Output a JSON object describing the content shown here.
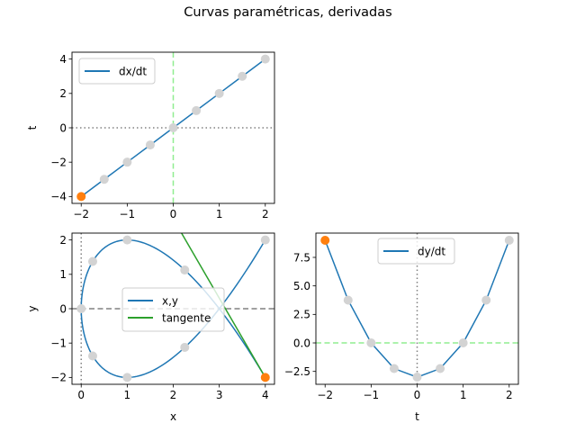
{
  "figure": {
    "title": "Curvas paramétricas, derivadas"
  },
  "chart_data": [
    {
      "id": "dxdt",
      "type": "line",
      "title": "",
      "xlabel": "",
      "ylabel": "t",
      "xlim": [
        -2.2,
        2.2
      ],
      "ylim": [
        -4.4,
        4.4
      ],
      "xticks": [
        -2,
        -1,
        0,
        1,
        2
      ],
      "xticklabels": [
        "−2",
        "−1",
        "0",
        "1",
        "2"
      ],
      "yticks": [
        -4,
        -2,
        0,
        2,
        4
      ],
      "yticklabels": [
        "−4",
        "−2",
        "0",
        "2",
        "4"
      ],
      "legend": {
        "position": "upper left",
        "entries": [
          {
            "label": "dx/dt",
            "color": "#1f77b4"
          }
        ]
      },
      "series": [
        {
          "name": "dx/dt",
          "color": "#1f77b4",
          "x": [
            -2,
            -1.5,
            -1,
            -0.5,
            0,
            0.5,
            1,
            1.5,
            2
          ],
          "y": [
            -4,
            -3,
            -2,
            -1,
            0,
            1,
            2,
            3,
            4
          ]
        }
      ],
      "markers": {
        "gray": {
          "color": "#d3d3d3",
          "x": [
            -1.5,
            -1,
            -0.5,
            0,
            0.5,
            1,
            1.5,
            2
          ],
          "y": [
            -3,
            -2,
            -1,
            0,
            1,
            2,
            3,
            4
          ]
        },
        "highlight": {
          "color": "#ff7f0e",
          "x": -2,
          "y": -4
        }
      },
      "reference_lines": [
        {
          "orientation": "horizontal",
          "value": 0,
          "style": "dotted",
          "color": "#808080"
        },
        {
          "orientation": "vertical",
          "value": 0,
          "style": "dashed",
          "color": "#90ee90"
        }
      ]
    },
    {
      "id": "xy",
      "type": "line",
      "title": "",
      "xlabel": "x",
      "ylabel": "y",
      "xlim": [
        -0.2,
        4.2
      ],
      "ylim": [
        -2.2,
        2.2
      ],
      "xticks": [
        0,
        1,
        2,
        3,
        4
      ],
      "xticklabels": [
        "0",
        "1",
        "2",
        "3",
        "4"
      ],
      "yticks": [
        -2,
        -1,
        0,
        1,
        2
      ],
      "yticklabels": [
        "−2",
        "−1",
        "0",
        "1",
        "2"
      ],
      "legend": {
        "position": "center",
        "entries": [
          {
            "label": "x,y",
            "color": "#1f77b4"
          },
          {
            "label": "tangente",
            "color": "#2ca02c"
          }
        ]
      },
      "series": [
        {
          "name": "x,y",
          "color": "#1f77b4",
          "param": "x = t^2, y = t^3 - 3t, t in [-2, 2]"
        },
        {
          "name": "tangente",
          "color": "#2ca02c",
          "x": [
            2.18,
            4.0
          ],
          "y": [
            2.2,
            -2.0
          ]
        }
      ],
      "markers": {
        "gray": {
          "color": "#d3d3d3",
          "x": [
            2.25,
            1,
            0.25,
            0,
            0.25,
            1,
            2.25,
            4
          ],
          "y": [
            1.125,
            2,
            1.375,
            0,
            -1.375,
            -2,
            -1.125,
            2
          ]
        },
        "highlight": {
          "color": "#ff7f0e",
          "x": 4,
          "y": -2
        }
      },
      "reference_lines": [
        {
          "orientation": "horizontal",
          "value": 0,
          "style": "dashed",
          "color": "#808080"
        },
        {
          "orientation": "vertical",
          "value": 0,
          "style": "dotted",
          "color": "#808080"
        }
      ]
    },
    {
      "id": "dydt",
      "type": "line",
      "title": "",
      "xlabel": "t",
      "ylabel": "",
      "xlim": [
        -2.2,
        2.2
      ],
      "ylim": [
        -3.63,
        9.63
      ],
      "xticks": [
        -2,
        -1,
        0,
        1,
        2
      ],
      "xticklabels": [
        "−2",
        "−1",
        "0",
        "1",
        "2"
      ],
      "yticks": [
        -2.5,
        0,
        2.5,
        5,
        7.5
      ],
      "yticklabels": [
        "−2.5",
        "0.0",
        "2.5",
        "5.0",
        "7.5"
      ],
      "legend": {
        "position": "upper center",
        "entries": [
          {
            "label": "dy/dt",
            "color": "#1f77b4"
          }
        ]
      },
      "series": [
        {
          "name": "dy/dt",
          "color": "#1f77b4",
          "x": [
            -2,
            -1.5,
            -1,
            -0.5,
            0,
            0.5,
            1,
            1.5,
            2
          ],
          "y": [
            9,
            3.75,
            0,
            -2.25,
            -3,
            -2.25,
            0,
            3.75,
            9
          ]
        }
      ],
      "markers": {
        "gray": {
          "color": "#d3d3d3",
          "x": [
            -1.5,
            -1,
            -0.5,
            0,
            0.5,
            1,
            1.5,
            2
          ],
          "y": [
            3.75,
            0,
            -2.25,
            -3,
            -2.25,
            0,
            3.75,
            9
          ]
        },
        "highlight": {
          "color": "#ff7f0e",
          "x": -2,
          "y": 9
        }
      },
      "reference_lines": [
        {
          "orientation": "horizontal",
          "value": 0,
          "style": "dashed",
          "color": "#90ee90"
        },
        {
          "orientation": "vertical",
          "value": 0,
          "style": "dotted",
          "color": "#808080"
        }
      ]
    }
  ]
}
